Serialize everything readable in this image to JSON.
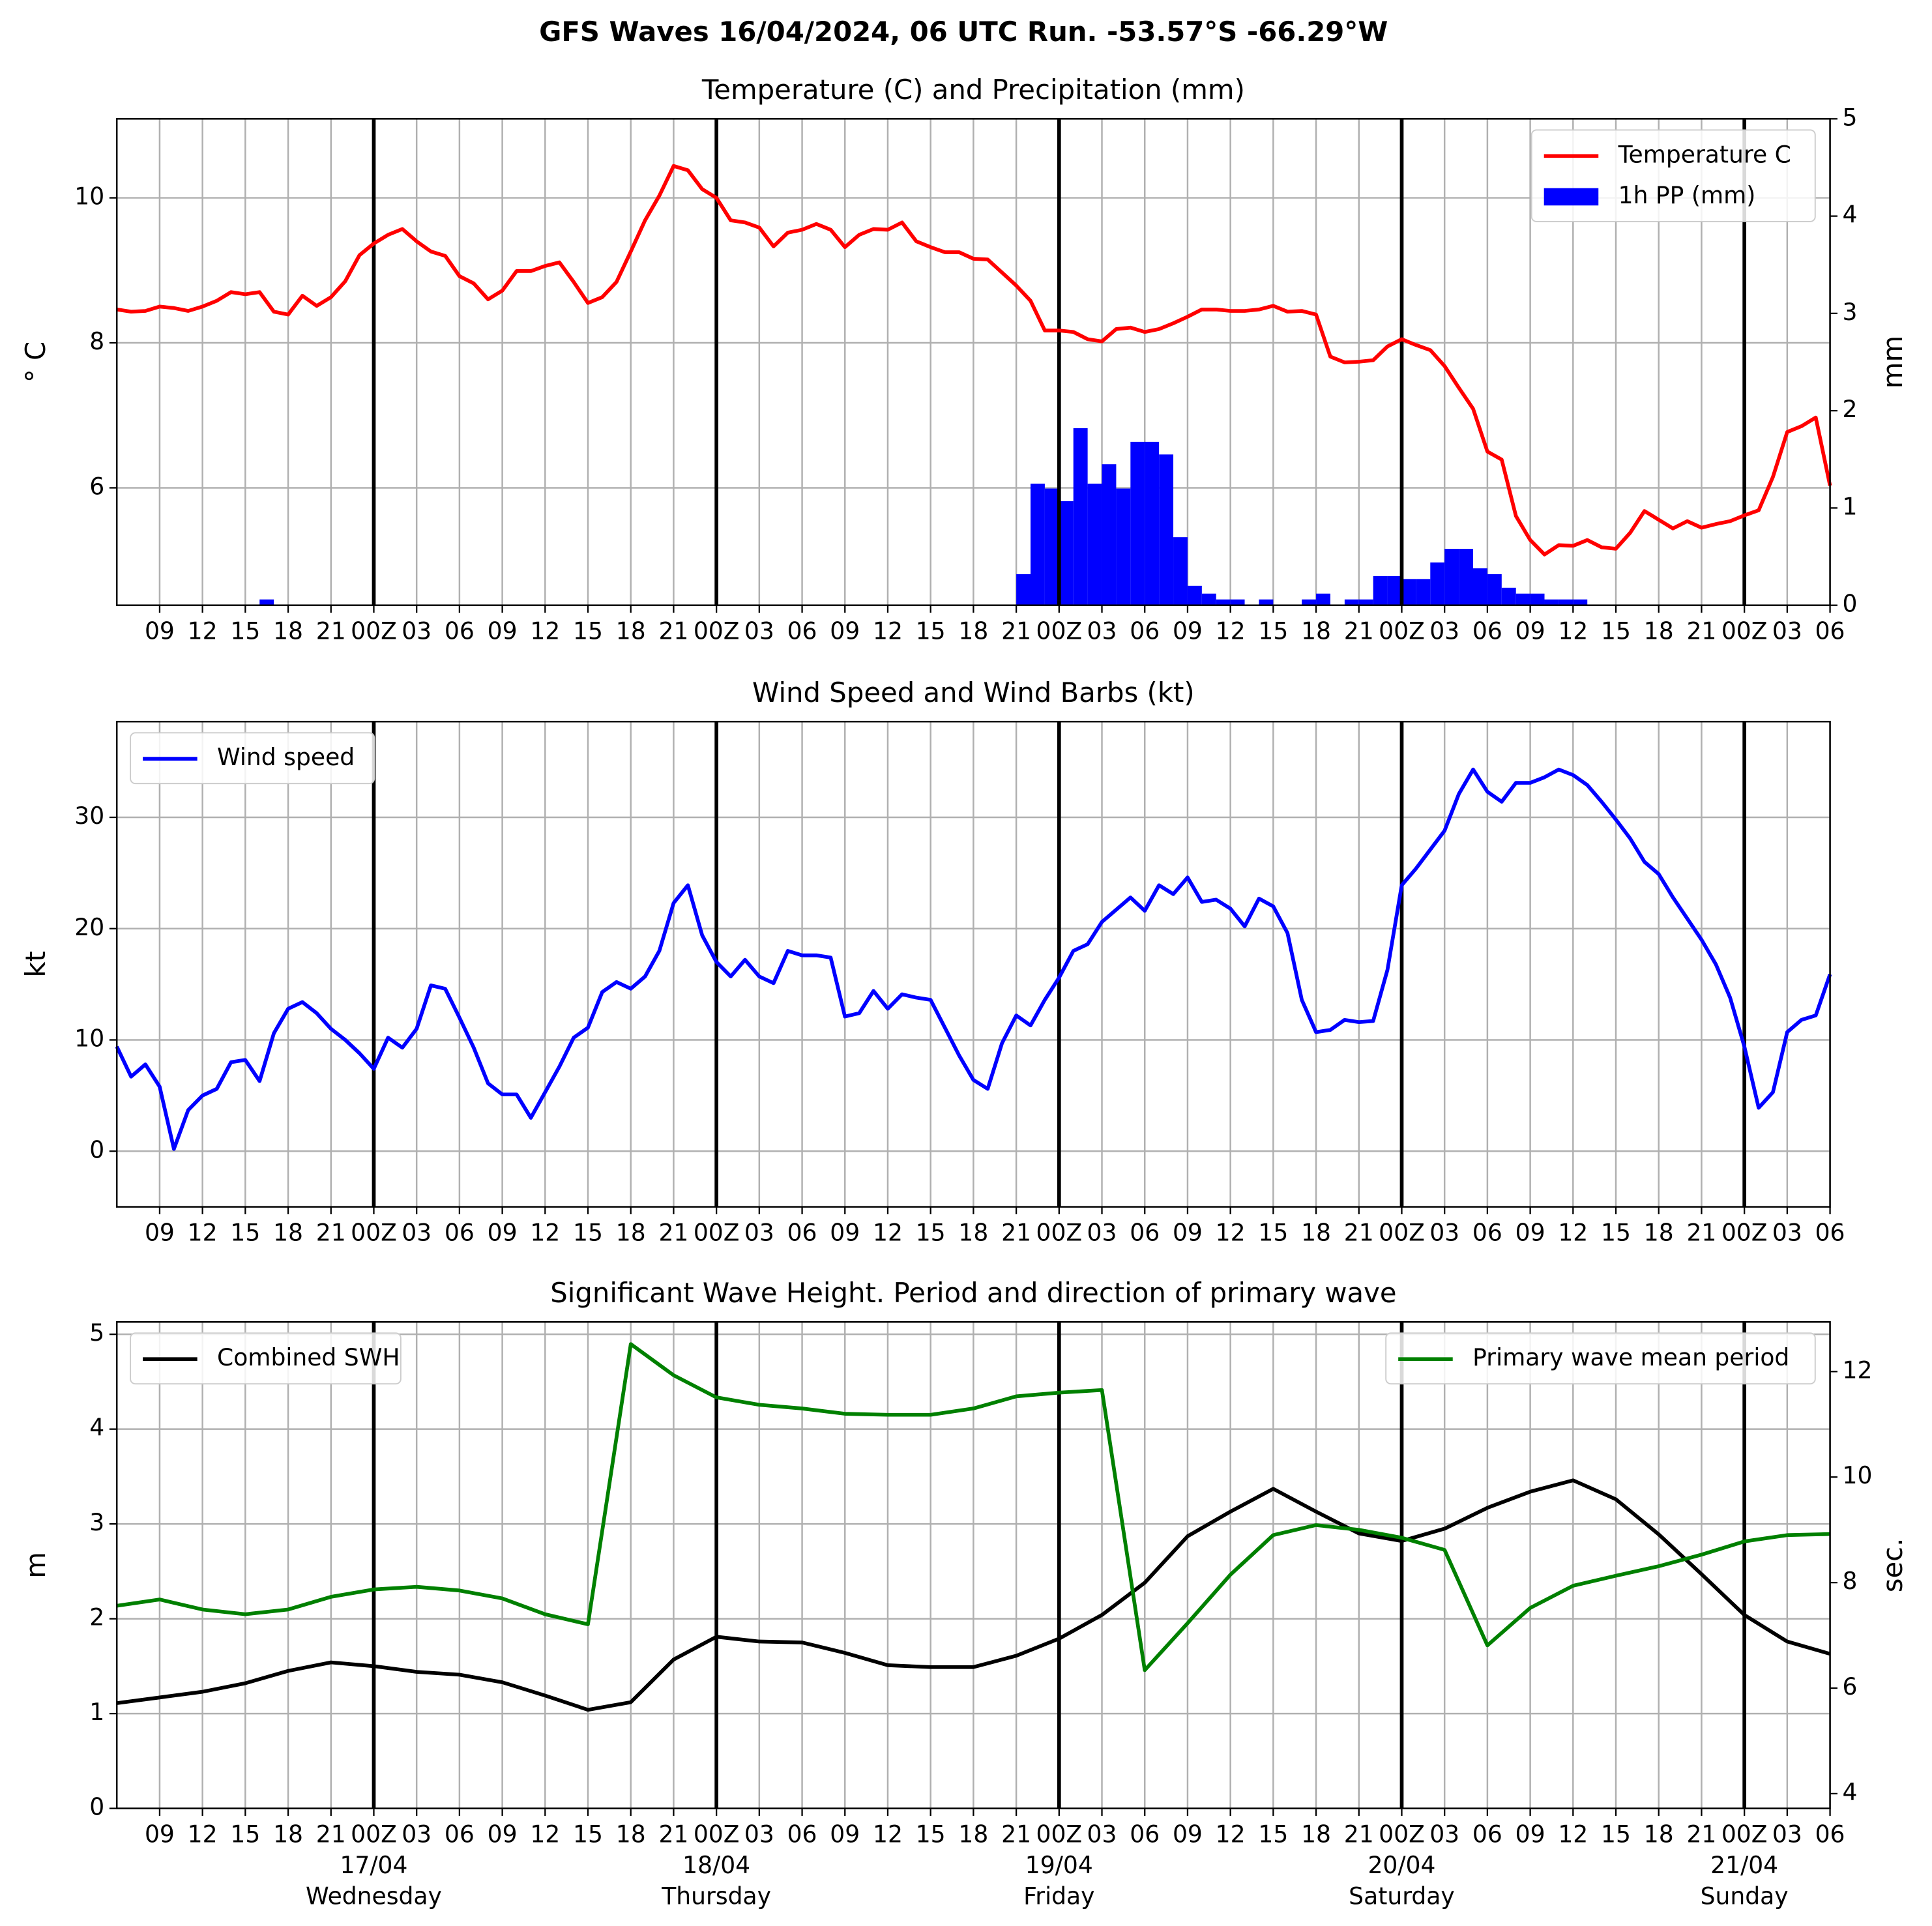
{
  "title": "GFS Waves 16/04/2024, 06 UTC Run. -53.57°S -66.29°W",
  "x_axis": {
    "xlim": [
      0,
      120
    ],
    "xticks": [
      {
        "value": 3,
        "label": "09"
      },
      {
        "value": 6,
        "label": "12"
      },
      {
        "value": 9,
        "label": "15"
      },
      {
        "value": 12,
        "label": "18"
      },
      {
        "value": 15,
        "label": "21"
      },
      {
        "value": 18,
        "label": "00Z"
      },
      {
        "value": 21,
        "label": "03"
      },
      {
        "value": 24,
        "label": "06"
      },
      {
        "value": 27,
        "label": "09"
      },
      {
        "value": 30,
        "label": "12"
      },
      {
        "value": 33,
        "label": "15"
      },
      {
        "value": 36,
        "label": "18"
      },
      {
        "value": 39,
        "label": "21"
      },
      {
        "value": 42,
        "label": "00Z"
      },
      {
        "value": 45,
        "label": "03"
      },
      {
        "value": 48,
        "label": "06"
      },
      {
        "value": 51,
        "label": "09"
      },
      {
        "value": 54,
        "label": "12"
      },
      {
        "value": 57,
        "label": "15"
      },
      {
        "value": 60,
        "label": "18"
      },
      {
        "value": 63,
        "label": "21"
      },
      {
        "value": 66,
        "label": "00Z"
      },
      {
        "value": 69,
        "label": "03"
      },
      {
        "value": 72,
        "label": "06"
      },
      {
        "value": 75,
        "label": "09"
      },
      {
        "value": 78,
        "label": "12"
      },
      {
        "value": 81,
        "label": "15"
      },
      {
        "value": 84,
        "label": "18"
      },
      {
        "value": 87,
        "label": "21"
      },
      {
        "value": 90,
        "label": "00Z"
      },
      {
        "value": 93,
        "label": "03"
      },
      {
        "value": 96,
        "label": "06"
      },
      {
        "value": 99,
        "label": "09"
      },
      {
        "value": 102,
        "label": "12"
      },
      {
        "value": 105,
        "label": "15"
      },
      {
        "value": 108,
        "label": "18"
      },
      {
        "value": 111,
        "label": "21"
      },
      {
        "value": 114,
        "label": "00Z"
      },
      {
        "value": 117,
        "label": "03"
      },
      {
        "value": 120,
        "label": "06"
      }
    ],
    "day_lines": [
      18,
      42,
      66,
      90,
      114
    ],
    "date_labels": [
      {
        "value": 18,
        "label": "17/04",
        "weekday": "Wednesday"
      },
      {
        "value": 42,
        "label": "18/04",
        "weekday": "Thursday"
      },
      {
        "value": 66,
        "label": "19/04",
        "weekday": "Friday"
      },
      {
        "value": 90,
        "label": "20/04",
        "weekday": "Saturday"
      },
      {
        "value": 114,
        "label": "21/04",
        "weekday": "Sunday"
      }
    ]
  },
  "chart_data": [
    {
      "type": "line",
      "title": "Temperature (C) and Precipitation (mm)",
      "ylabel": "° C",
      "y2label": "mm",
      "ylim": [
        4.38,
        11.09
      ],
      "yticks": [
        6,
        8,
        10
      ],
      "y2lim": [
        0,
        5
      ],
      "y2ticks": [
        0,
        1,
        2,
        3,
        4,
        5
      ],
      "grid": true,
      "legend": "upper right",
      "x": [
        0,
        1,
        2,
        3,
        4,
        5,
        6,
        7,
        8,
        9,
        10,
        11,
        12,
        13,
        14,
        15,
        16,
        17,
        18,
        19,
        20,
        21,
        22,
        23,
        24,
        25,
        26,
        27,
        28,
        29,
        30,
        31,
        32,
        33,
        34,
        35,
        36,
        37,
        38,
        39,
        40,
        41,
        42,
        43,
        44,
        45,
        46,
        47,
        48,
        49,
        50,
        51,
        52,
        53,
        54,
        55,
        56,
        57,
        58,
        59,
        60,
        61,
        62,
        63,
        64,
        65,
        66,
        67,
        68,
        69,
        70,
        71,
        72,
        73,
        74,
        75,
        76,
        77,
        78,
        79,
        80,
        81,
        82,
        83,
        84,
        85,
        86,
        87,
        88,
        89,
        90,
        91,
        92,
        93,
        94,
        95,
        96,
        97,
        98,
        99,
        100,
        101,
        102,
        103,
        104,
        105,
        106,
        107,
        108,
        109,
        110,
        111,
        112,
        113,
        114,
        115,
        116,
        117,
        118,
        119,
        120
      ],
      "series": [
        {
          "name": "Temperature C",
          "type": "line",
          "color": "#ff0000",
          "values": [
            8.46,
            8.43,
            8.44,
            8.5,
            8.48,
            8.44,
            8.5,
            8.58,
            8.7,
            8.67,
            8.7,
            8.43,
            8.39,
            8.65,
            8.51,
            8.63,
            8.85,
            9.21,
            9.37,
            9.49,
            9.57,
            9.4,
            9.26,
            9.2,
            8.92,
            8.82,
            8.6,
            8.72,
            8.99,
            8.99,
            9.06,
            9.11,
            8.84,
            8.55,
            8.63,
            8.84,
            9.26,
            9.69,
            10.03,
            10.44,
            10.38,
            10.12,
            10.0,
            9.69,
            9.66,
            9.59,
            9.33,
            9.52,
            9.56,
            9.64,
            9.56,
            9.32,
            9.49,
            9.57,
            9.56,
            9.66,
            9.4,
            9.32,
            9.25,
            9.25,
            9.16,
            9.15,
            8.97,
            8.79,
            8.58,
            8.17,
            8.17,
            8.15,
            8.05,
            8.02,
            8.19,
            8.21,
            8.15,
            8.19,
            8.27,
            8.36,
            8.46,
            8.46,
            8.44,
            8.44,
            8.46,
            8.51,
            8.43,
            8.44,
            8.39,
            7.81,
            7.73,
            7.74,
            7.76,
            7.95,
            8.05,
            7.97,
            7.9,
            7.68,
            7.38,
            7.09,
            6.5,
            6.39,
            5.61,
            5.28,
            5.08,
            5.21,
            5.2,
            5.28,
            5.18,
            5.16,
            5.38,
            5.68,
            5.56,
            5.44,
            5.54,
            5.45,
            5.5,
            5.54,
            5.62,
            5.69,
            6.15,
            6.77,
            6.85,
            6.97,
            6.03
          ]
        },
        {
          "name": "1h PP (mm)",
          "type": "bar",
          "axis": "y2",
          "color": "#0000ff",
          "values": [
            0,
            0,
            0,
            0,
            0,
            0,
            0,
            0,
            0,
            0,
            0.06,
            0,
            0,
            0,
            0,
            0,
            0,
            0,
            0,
            0,
            0,
            0,
            0,
            0,
            0,
            0,
            0,
            0,
            0,
            0,
            0,
            0,
            0,
            0,
            0,
            0,
            0,
            0,
            0,
            0,
            0,
            0,
            0,
            0,
            0,
            0,
            0,
            0,
            0,
            0,
            0,
            0,
            0,
            0,
            0,
            0,
            0,
            0,
            0,
            0,
            0,
            0,
            0,
            0.32,
            1.25,
            1.2,
            1.07,
            1.82,
            1.25,
            1.45,
            1.2,
            1.68,
            1.68,
            1.55,
            0.7,
            0.2,
            0.12,
            0.06,
            0.06,
            0,
            0.06,
            0,
            0,
            0.06,
            0.12,
            0,
            0.06,
            0.06,
            0.3,
            0.3,
            0.27,
            0.27,
            0.44,
            0.58,
            0.58,
            0.38,
            0.32,
            0.18,
            0.12,
            0.12,
            0.06,
            0.06,
            0.06,
            0,
            0,
            0,
            0,
            0,
            0,
            0,
            0,
            0,
            0,
            0,
            0,
            0,
            0,
            0,
            0,
            0,
            0
          ]
        }
      ]
    },
    {
      "type": "line",
      "title": "Wind Speed and Wind Barbs (kt)",
      "ylabel": "kt",
      "ylim": [
        -5,
        38.6
      ],
      "yticks": [
        0,
        10,
        20,
        30
      ],
      "grid": true,
      "legend": "upper left",
      "x": [
        0,
        1,
        2,
        3,
        4,
        5,
        6,
        7,
        8,
        9,
        10,
        11,
        12,
        13,
        14,
        15,
        16,
        17,
        18,
        19,
        20,
        21,
        22,
        23,
        24,
        25,
        26,
        27,
        28,
        29,
        30,
        31,
        32,
        33,
        34,
        35,
        36,
        37,
        38,
        39,
        40,
        41,
        42,
        43,
        44,
        45,
        46,
        47,
        48,
        49,
        50,
        51,
        52,
        53,
        54,
        55,
        56,
        57,
        58,
        59,
        60,
        61,
        62,
        63,
        64,
        65,
        66,
        67,
        68,
        69,
        70,
        71,
        72,
        73,
        74,
        75,
        76,
        77,
        78,
        79,
        80,
        81,
        82,
        83,
        84,
        85,
        86,
        87,
        88,
        89,
        90,
        91,
        92,
        93,
        94,
        95,
        96,
        97,
        98,
        99,
        100,
        101,
        102,
        103,
        104,
        105,
        106,
        107,
        108,
        109,
        110,
        111,
        112,
        113,
        114,
        115,
        116,
        117,
        118,
        119,
        120
      ],
      "series": [
        {
          "name": "Wind speed",
          "type": "line",
          "color": "#0000ff",
          "values": [
            9.4,
            6.7,
            7.8,
            5.8,
            0.2,
            3.7,
            5.0,
            5.6,
            8.0,
            8.2,
            6.3,
            10.6,
            12.8,
            13.4,
            12.4,
            11.0,
            10.0,
            8.8,
            7.4,
            10.2,
            9.3,
            11.0,
            14.9,
            14.6,
            12.0,
            9.3,
            6.1,
            5.1,
            5.1,
            3.0,
            5.3,
            7.6,
            10.2,
            11.1,
            14.3,
            15.2,
            14.6,
            15.7,
            18.0,
            22.3,
            23.9,
            19.4,
            17.0,
            15.7,
            17.2,
            15.7,
            15.1,
            18.0,
            17.6,
            17.6,
            17.4,
            12.1,
            12.4,
            14.4,
            12.8,
            14.1,
            13.8,
            13.6,
            11.1,
            8.6,
            6.4,
            5.6,
            9.7,
            12.2,
            11.3,
            13.6,
            15.6,
            18.0,
            18.6,
            20.6,
            21.7,
            22.8,
            21.6,
            23.9,
            23.1,
            24.6,
            22.4,
            22.6,
            21.8,
            20.2,
            22.7,
            22.0,
            19.6,
            13.6,
            10.7,
            10.9,
            11.8,
            11.6,
            11.7,
            16.3,
            23.9,
            25.4,
            27.1,
            28.8,
            32.1,
            34.3,
            32.3,
            31.4,
            33.1,
            33.1,
            33.6,
            34.3,
            33.8,
            32.9,
            31.4,
            29.8,
            28.1,
            26.0,
            24.9,
            22.8,
            20.9,
            19.0,
            16.8,
            13.8,
            9.4,
            3.9,
            5.3,
            10.7,
            11.8,
            12.2,
            15.9
          ]
        }
      ]
    },
    {
      "type": "line",
      "title": "Significant Wave Height. Period and direction of primary wave",
      "ylabel": "m",
      "y2label": "sec.",
      "y2label_color": "#008000",
      "ylim": [
        0,
        5.13
      ],
      "yticks": [
        0,
        1,
        2,
        3,
        4,
        5
      ],
      "y2lim": [
        3.72,
        12.94
      ],
      "y2ticks": [
        4,
        6,
        8,
        10,
        12
      ],
      "grid": true,
      "legend": "upper left",
      "x": [
        0,
        3,
        6,
        9,
        12,
        15,
        18,
        21,
        24,
        27,
        30,
        33,
        36,
        39,
        42,
        45,
        48,
        51,
        54,
        57,
        60,
        63,
        66,
        69,
        72,
        75,
        78,
        81,
        84,
        87,
        90,
        93,
        96,
        99,
        102,
        105,
        108,
        111,
        114,
        117,
        120
      ],
      "series": [
        {
          "name": "Combined SWH",
          "type": "line",
          "color": "#000000",
          "values": [
            1.11,
            1.17,
            1.23,
            1.32,
            1.45,
            1.54,
            1.5,
            1.44,
            1.41,
            1.33,
            1.19,
            1.04,
            1.12,
            1.57,
            1.81,
            1.76,
            1.75,
            1.64,
            1.51,
            1.49,
            1.49,
            1.61,
            1.79,
            2.04,
            2.38,
            2.87,
            3.13,
            3.37,
            3.13,
            2.9,
            2.82,
            2.95,
            3.17,
            3.34,
            3.46,
            3.26,
            2.89,
            2.47,
            2.04,
            1.76,
            1.63
          ]
        },
        {
          "name": "Primary wave mean period",
          "type": "line",
          "axis": "y2",
          "legend": "upper right",
          "color": "#008000",
          "values": [
            7.56,
            7.68,
            7.49,
            7.4,
            7.49,
            7.73,
            7.87,
            7.92,
            7.85,
            7.7,
            7.4,
            7.21,
            12.52,
            11.93,
            11.51,
            11.37,
            11.3,
            11.2,
            11.18,
            11.18,
            11.3,
            11.53,
            11.6,
            11.65,
            6.34,
            7.23,
            8.15,
            8.9,
            9.09,
            9.0,
            8.85,
            8.62,
            6.81,
            7.52,
            7.94,
            8.13,
            8.31,
            8.53,
            8.78,
            8.9,
            8.92
          ]
        }
      ]
    }
  ]
}
